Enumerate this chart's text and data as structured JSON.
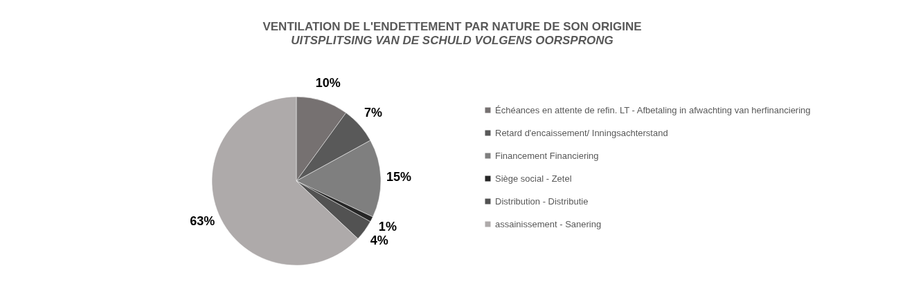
{
  "chart_data": {
    "type": "pie",
    "title": "VENTILATION DE L'ENDETTEMENT PAR NATURE DE SON ORIGINE",
    "subtitle": "UITSPLITSING VAN DE SCHULD VOLGENS OORSPRONG",
    "categories": [
      "Échéances en attente de refin. LT - Afbetaling in afwachting van herfinanciering",
      "Retard d'encaissement/ Inningsachterstand",
      "Financement Financiering",
      "Siège social - Zetel",
      "Distribution - Distributie",
      "assainissement - Sanering"
    ],
    "values": [
      10,
      7,
      15,
      1,
      4,
      63
    ],
    "value_labels": [
      "10%",
      "7%",
      "15%",
      "1%",
      "4%",
      "63%"
    ],
    "colors": [
      "#767171",
      "#595959",
      "#7f7f7f",
      "#262626",
      "#525252",
      "#aeaaaa"
    ],
    "legend": "right"
  }
}
